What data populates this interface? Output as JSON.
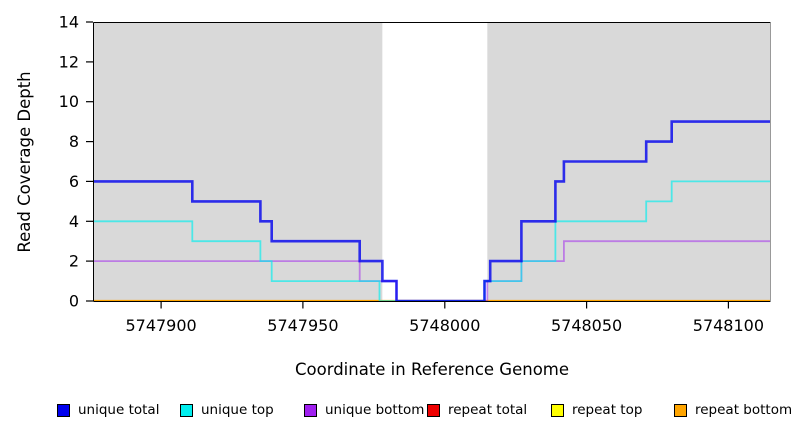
{
  "figure": {
    "background": "#FFFFFF",
    "plot_background": "#D9D9D9",
    "box_color": "#000000",
    "box_right_color": "#999999"
  },
  "chart_data": {
    "type": "line",
    "subtype": "step",
    "title": "",
    "xlabel": "Coordinate in Reference Genome",
    "ylabel": "Read Coverage Depth",
    "xlim": [
      5747876,
      5748115
    ],
    "ylim": [
      0,
      14
    ],
    "xticks": [
      5747900,
      5747950,
      5748000,
      5748050,
      5748100
    ],
    "yticks": [
      0,
      2,
      4,
      6,
      8,
      10,
      12,
      14
    ],
    "grid": false,
    "highlight_band": {
      "x0": 5747978,
      "x1": 5748015,
      "color": "#FFFFFF"
    },
    "legend_position": "bottom",
    "draw_order": [
      3,
      4,
      5,
      2,
      1,
      0
    ],
    "series": [
      {
        "name": "unique total",
        "line_color": "rgba(0,0,238,0.80)",
        "swatch_color": "#0000EE",
        "line_width": 2.6,
        "steps": [
          [
            5747876,
            6
          ],
          [
            5747911,
            5
          ],
          [
            5747935,
            4
          ],
          [
            5747939,
            3
          ],
          [
            5747970,
            2
          ],
          [
            5747978,
            1
          ],
          [
            5747983,
            0
          ],
          [
            5748014,
            1
          ],
          [
            5748016,
            2
          ],
          [
            5748027,
            4
          ],
          [
            5748039,
            6
          ],
          [
            5748042,
            7
          ],
          [
            5748071,
            8
          ],
          [
            5748080,
            9
          ]
        ]
      },
      {
        "name": "unique top",
        "line_color": "rgba(0,238,238,0.65)",
        "swatch_color": "#00EEEE",
        "line_width": 1.8,
        "steps": [
          [
            5747876,
            4
          ],
          [
            5747911,
            3
          ],
          [
            5747935,
            2
          ],
          [
            5747939,
            1
          ],
          [
            5747977,
            0
          ],
          [
            5748014,
            1
          ],
          [
            5748027,
            2
          ],
          [
            5748039,
            4
          ],
          [
            5748071,
            5
          ],
          [
            5748080,
            6
          ]
        ]
      },
      {
        "name": "unique bottom",
        "line_color": "rgba(160,32,240,0.50)",
        "swatch_color": "#A020F0",
        "line_width": 1.8,
        "steps": [
          [
            5747876,
            2
          ],
          [
            5747970,
            1
          ],
          [
            5747983,
            0
          ],
          [
            5748015,
            1
          ],
          [
            5748027,
            2
          ],
          [
            5748042,
            3
          ]
        ]
      },
      {
        "name": "repeat total",
        "line_color": "rgba(238,0,0,1)",
        "swatch_color": "#EE0000",
        "line_width": 1.4,
        "steps": [
          [
            5747876,
            0
          ]
        ]
      },
      {
        "name": "repeat top",
        "line_color": "rgba(255,255,0,1)",
        "swatch_color": "#FFFF00",
        "line_width": 1.4,
        "steps": [
          [
            5747876,
            0
          ]
        ]
      },
      {
        "name": "repeat bottom",
        "line_color": "#FFA500",
        "swatch_color": "#FFA500",
        "line_width": 2.2,
        "steps": [
          [
            5747876,
            0
          ]
        ]
      }
    ]
  }
}
